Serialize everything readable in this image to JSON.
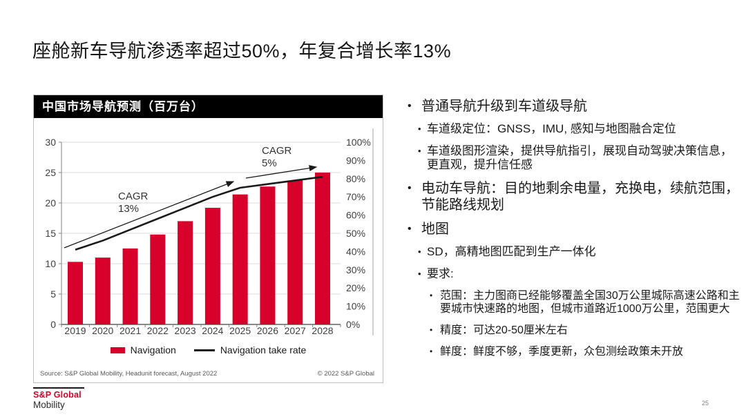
{
  "slide": {
    "title": "座舱新车导航渗透率超过50%，年复合增长率13%",
    "page_number": "25"
  },
  "footer": {
    "brand_line1": "S&P Global",
    "brand_line2": "Mobility",
    "brand_color": "#D6002A"
  },
  "chart_card": {
    "header": "中国市场导航预测（百万台）",
    "legend_bar_label": "Navigation",
    "legend_line_label": "Navigation take rate",
    "source_left": "Source: S&P Global Mobility, Headunit forecast, August 2022",
    "source_right": "© 2022 S&P Global"
  },
  "chart_data": {
    "type": "bar",
    "title": "中国市场导航预测（百万台）",
    "categories": [
      "2019",
      "2020",
      "2021",
      "2022",
      "2023",
      "2024",
      "2025",
      "2026",
      "2027",
      "2028"
    ],
    "series": [
      {
        "name": "Navigation",
        "type": "bar",
        "axis": "left",
        "color": "#D6002A",
        "values": [
          10.3,
          11.0,
          12.5,
          14.8,
          17.0,
          19.2,
          21.4,
          22.7,
          23.7,
          25.0
        ]
      },
      {
        "name": "Navigation take rate",
        "type": "line",
        "axis": "right",
        "color": "#1a1a1a",
        "values": [
          41,
          46,
          52,
          58,
          64,
          70,
          75,
          77,
          79,
          81
        ]
      }
    ],
    "left_axis": {
      "min": 0,
      "max": 30,
      "step": 5
    },
    "right_axis": {
      "min": 0,
      "max": 100,
      "step": 10,
      "suffix": "%"
    },
    "grid": true,
    "legend_position": "bottom",
    "annotations": [
      {
        "label_lines": [
          "CAGR",
          "13%"
        ]
      },
      {
        "label_lines": [
          "CAGR",
          "5%"
        ]
      }
    ]
  },
  "bullets": [
    {
      "level": 1,
      "text": "普通导航升级到车道级导航"
    },
    {
      "level": 2,
      "text": "车道级定位：GNSS，IMU, 感知与地图融合定位"
    },
    {
      "level": 2,
      "text": "车道级图形渲染，提供导航指引，展现自动驾驶决策信息，更直观，提升信任感"
    },
    {
      "level": 1,
      "text": "电动车导航：目的地剩余电量，充换电，续航范围，节能路线规划"
    },
    {
      "level": 1,
      "text": "地图"
    },
    {
      "level": 2,
      "text": "SD，高精地图匹配到生产一体化"
    },
    {
      "level": 2,
      "text": "要求:"
    },
    {
      "level": 3,
      "text": "范围：主力图商已经能够覆盖全国30万公里城际高速公路和主要城市快速路的地图，但城市道路近1000万公里，范围更大"
    },
    {
      "level": 3,
      "text": "精度：可达20-50厘米左右"
    },
    {
      "level": 3,
      "text": "鲜度：鲜度不够，季度更新，众包测绘政策未开放"
    }
  ]
}
